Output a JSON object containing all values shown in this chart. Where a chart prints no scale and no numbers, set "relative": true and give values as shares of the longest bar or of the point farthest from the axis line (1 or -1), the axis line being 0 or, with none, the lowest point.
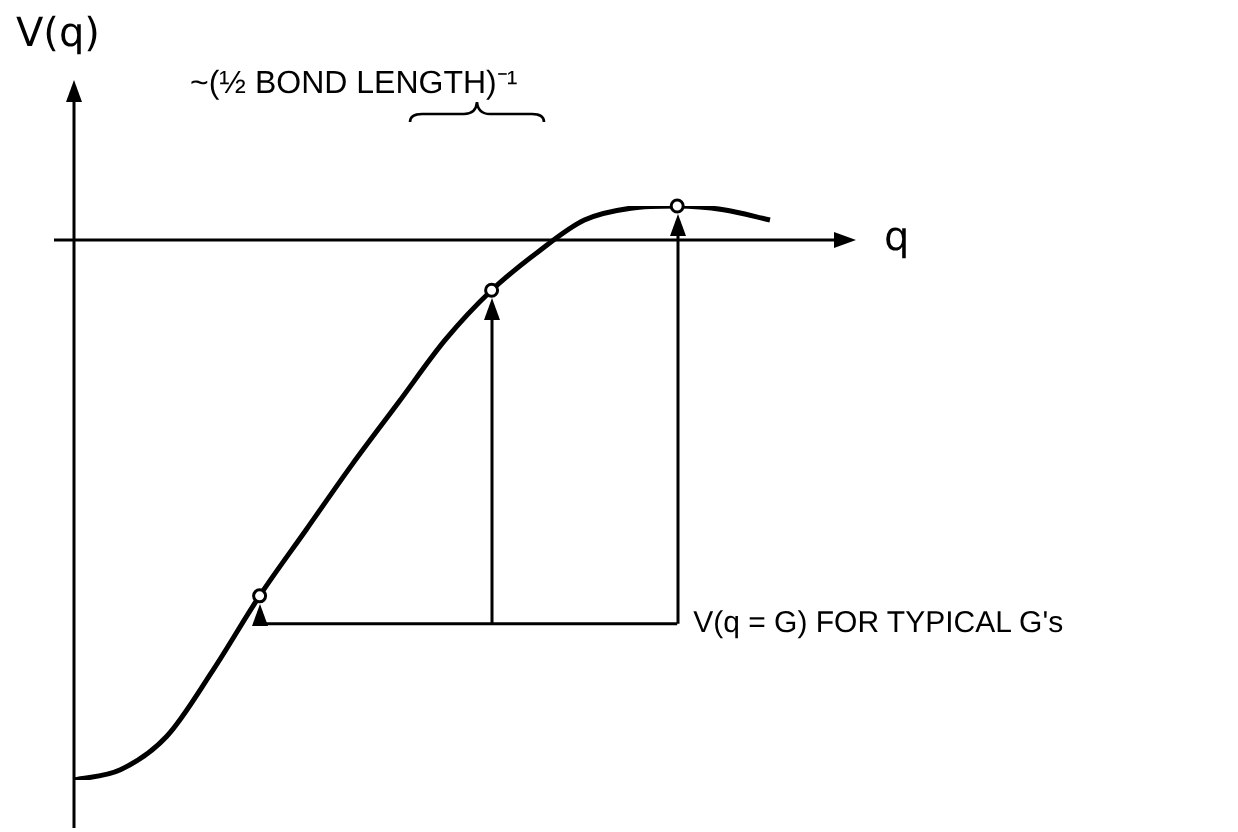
{
  "chart_data": {
    "type": "line",
    "relative": true,
    "xlabel": "q",
    "ylabel": "V(q)",
    "categories": [
      null,
      null,
      null,
      null,
      null,
      null,
      null,
      null,
      null,
      null,
      null,
      null,
      null,
      null,
      null,
      null
    ],
    "series": [
      {
        "color": "#000000",
        "values": [
          -1,
          -0.981,
          -0.919,
          -0.796,
          -0.659,
          -0.537,
          -0.415,
          -0.3,
          -0.185,
          -0.093,
          -0.022,
          0.037,
          0.059,
          0.063,
          0.056,
          0.037
        ]
      }
    ],
    "annotations": [
      "~(½ BOND LENGTH)⁻¹",
      "V(q = G) FOR TYPICAL G's"
    ],
    "marker": "none",
    "line_style": "solid",
    "legend": false
  }
}
